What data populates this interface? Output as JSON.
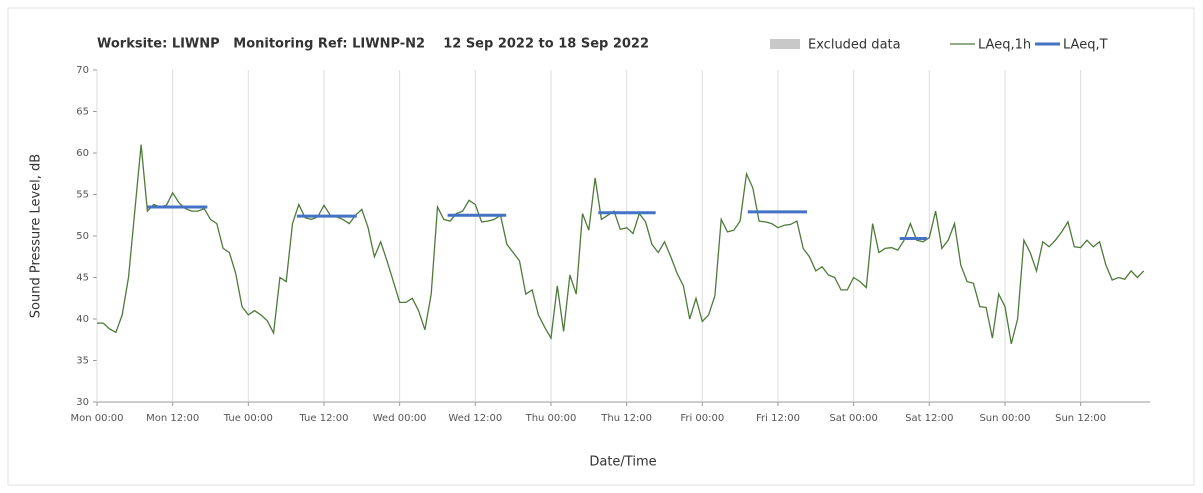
{
  "chart_data": {
    "type": "line",
    "title": "Worksite: LIWNP   Monitoring Ref: LIWNP-N2    12 Sep 2022 to 18 Sep 2022",
    "y_label": "Sound Pressure Level, dB",
    "x_label": "Date/Time",
    "xlim": [
      0,
      167
    ],
    "ylim": [
      30,
      70
    ],
    "yticks": [
      30,
      35,
      40,
      45,
      50,
      55,
      60,
      65,
      70
    ],
    "xticks": [
      {
        "value": 0,
        "label": "Mon 00:00"
      },
      {
        "value": 12,
        "label": "Mon 12:00"
      },
      {
        "value": 24,
        "label": "Tue 00:00"
      },
      {
        "value": 36,
        "label": "Tue 12:00"
      },
      {
        "value": 48,
        "label": "Wed 00:00"
      },
      {
        "value": 60,
        "label": "Wed 12:00"
      },
      {
        "value": 72,
        "label": "Thu 00:00"
      },
      {
        "value": 84,
        "label": "Thu 12:00"
      },
      {
        "value": 96,
        "label": "Fri 00:00"
      },
      {
        "value": 108,
        "label": "Fri 12:00"
      },
      {
        "value": 120,
        "label": "Sat 00:00"
      },
      {
        "value": 132,
        "label": "Sat 12:00"
      },
      {
        "value": 144,
        "label": "Sun 00:00"
      },
      {
        "value": 156,
        "label": "Sun 12:00"
      }
    ],
    "grid": true,
    "series": [
      {
        "name": "Excluded data",
        "color": "#c8c8c8",
        "x": [],
        "values": []
      },
      {
        "name": "LAeq,1h",
        "color": "#4e7a3a",
        "x": [
          0,
          1,
          2,
          3,
          4,
          5,
          6,
          7,
          8,
          9,
          10,
          11,
          12,
          13,
          14,
          15,
          16,
          17,
          18,
          19,
          20,
          21,
          22,
          23,
          24,
          25,
          26,
          27,
          28,
          29,
          30,
          31,
          32,
          33,
          34,
          35,
          36,
          37,
          38,
          39,
          40,
          41,
          42,
          43,
          44,
          45,
          46,
          47,
          48,
          49,
          50,
          51,
          52,
          53,
          54,
          55,
          56,
          57,
          58,
          59,
          60,
          61,
          62,
          63,
          64,
          65,
          66,
          67,
          68,
          69,
          70,
          71,
          72,
          73,
          74,
          75,
          76,
          77,
          78,
          79,
          80,
          81,
          82,
          83,
          84,
          85,
          86,
          87,
          88,
          89,
          90,
          91,
          92,
          93,
          94,
          95,
          96,
          97,
          98,
          99,
          100,
          101,
          102,
          103,
          104,
          105,
          106,
          107,
          108,
          109,
          110,
          111,
          112,
          113,
          114,
          115,
          116,
          117,
          118,
          119,
          120,
          121,
          122,
          123,
          124,
          125,
          126,
          127,
          128,
          129,
          130,
          131,
          132,
          133,
          134,
          135,
          136,
          137,
          138,
          139,
          140,
          141,
          142,
          143,
          144,
          145,
          146,
          147,
          148,
          149,
          150,
          151,
          152,
          153,
          154,
          155,
          156,
          157,
          158,
          159,
          160,
          161,
          162,
          163,
          164,
          165,
          166
        ],
        "values": [
          39.5,
          39.5,
          38.8,
          38.4,
          40.5,
          45,
          53,
          61,
          53,
          53.8,
          53.5,
          53.7,
          55.2,
          54,
          53.3,
          53,
          53,
          53.3,
          52,
          51.5,
          48.5,
          48,
          45.5,
          41.5,
          40.5,
          41,
          40.5,
          39.8,
          38.3,
          45,
          44.5,
          51.5,
          53.8,
          52.2,
          52,
          52.3,
          53.7,
          52.5,
          52.3,
          52,
          51.5,
          52.5,
          53.2,
          51,
          47.5,
          49.3,
          47,
          44.5,
          42,
          42,
          42.5,
          41,
          38.7,
          43,
          53.5,
          52,
          51.8,
          52.7,
          53,
          54.3,
          53.8,
          51.7,
          51.8,
          52,
          52.5,
          49,
          48,
          47,
          43,
          43.5,
          40.5,
          39,
          37.7,
          44,
          38.5,
          45.3,
          43,
          52.7,
          50.7,
          57,
          52,
          52.5,
          53,
          50.8,
          51,
          50.3,
          52.7,
          51.7,
          49,
          48,
          49.3,
          47.5,
          45.5,
          44,
          40,
          42.5,
          39.7,
          40.5,
          42.8,
          52,
          50.5,
          50.7,
          51.8,
          57.5,
          55.8,
          51.8,
          51.7,
          51.5,
          51,
          51.3,
          51.4,
          51.8,
          48.5,
          47.5,
          45.8,
          46.3,
          45.3,
          45,
          43.5,
          43.5,
          45,
          44.5,
          43.8,
          51.5,
          48,
          48.5,
          48.6,
          48.3,
          49.5,
          51.5,
          49.5,
          49.3,
          49.8,
          53,
          48.5,
          49.5,
          51.5,
          46.5,
          44.5,
          44.3,
          41.5,
          41.4,
          37.7,
          43,
          41.5,
          37,
          40,
          49.5,
          48,
          45.8,
          49.3,
          48.7,
          49.5,
          50.5,
          51.7,
          48.7,
          48.6,
          49.5,
          48.7,
          49.3,
          46.5,
          44.7,
          45,
          44.8,
          45.8,
          45,
          45.8
        ]
      },
      {
        "name": "LAeq,T",
        "color": "#4472c4",
        "segments": [
          {
            "x": [
              8,
              17.5
            ],
            "value": 53.5
          },
          {
            "x": [
              31.7,
              41.2
            ],
            "value": 52.4
          },
          {
            "x": [
              55.6,
              64.9
            ],
            "value": 52.5
          },
          {
            "x": [
              79.5,
              88.6
            ],
            "value": 52.8
          },
          {
            "x": [
              103.2,
              112.6
            ],
            "value": 52.9
          },
          {
            "x": [
              127.3,
              131.6
            ],
            "value": 49.7
          }
        ]
      }
    ]
  }
}
